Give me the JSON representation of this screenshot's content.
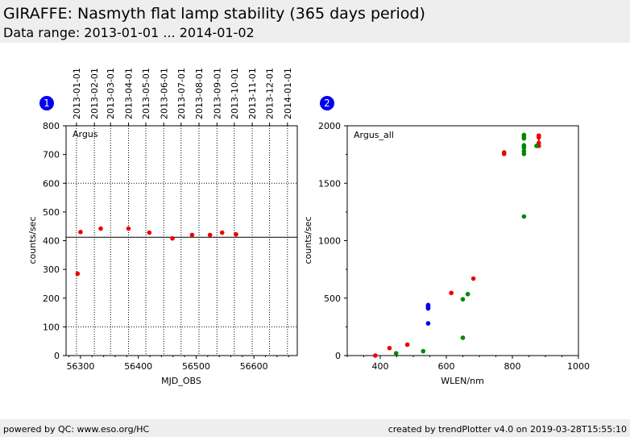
{
  "header": {
    "title": "GIRAFFE: Nasmyth flat lamp stability (365 days period)",
    "subtitle": "Data range: 2013-01-01 ... 2014-01-02"
  },
  "footer": {
    "left": "powered by QC: www.eso.org/HC",
    "right": "created by trendPlotter v4.0 on 2019-03-28T15:55:10"
  },
  "chart_data": [
    {
      "type": "scatter",
      "panel_number": "1",
      "label": "Argus",
      "xlabel": "MJD_OBS",
      "ylabel": "counts/sec",
      "xlim": [
        56275,
        56675
      ],
      "ylim": [
        0,
        800
      ],
      "xticks": [
        56300,
        56400,
        56500,
        56600
      ],
      "yticks": [
        0,
        100,
        200,
        300,
        400,
        500,
        600,
        700,
        800
      ],
      "top_axis_dates": [
        "2013-01-01",
        "2013-02-01",
        "2013-03-01",
        "2013-04-01",
        "2013-05-01",
        "2013-06-01",
        "2013-07-01",
        "2013-08-01",
        "2013-09-01",
        "2013-10-01",
        "2013-11-01",
        "2013-12-01",
        "2014-01-01"
      ],
      "top_axis_mjd": [
        56293,
        56324,
        56352,
        56383,
        56413,
        56444,
        56474,
        56505,
        56536,
        56566,
        56597,
        56627,
        56658
      ],
      "reference_line": 412,
      "threshold_lines": [
        100,
        600
      ],
      "color": "#ee0000",
      "points": [
        {
          "x": 56295,
          "y": 285
        },
        {
          "x": 56300,
          "y": 430
        },
        {
          "x": 56335,
          "y": 442
        },
        {
          "x": 56383,
          "y": 442
        },
        {
          "x": 56419,
          "y": 428
        },
        {
          "x": 56459,
          "y": 408
        },
        {
          "x": 56493,
          "y": 420
        },
        {
          "x": 56524,
          "y": 420
        },
        {
          "x": 56545,
          "y": 428
        },
        {
          "x": 56569,
          "y": 422
        }
      ]
    },
    {
      "type": "scatter",
      "panel_number": "2",
      "label": "Argus_all",
      "xlabel": "WLEN/nm",
      "ylabel": "counts/sec",
      "xlim": [
        300,
        1000
      ],
      "ylim": [
        0,
        2000
      ],
      "xticks": [
        400,
        600,
        800,
        1000
      ],
      "yticks": [
        0,
        500,
        1000,
        1500,
        2000
      ],
      "series": [
        {
          "color": "#ee0000",
          "points": [
            {
              "x": 385,
              "y": 0
            },
            {
              "x": 428,
              "y": 65
            },
            {
              "x": 482,
              "y": 95
            },
            {
              "x": 615,
              "y": 545
            },
            {
              "x": 682,
              "y": 670
            },
            {
              "x": 775,
              "y": 1755
            },
            {
              "x": 775,
              "y": 1768
            },
            {
              "x": 880,
              "y": 1900
            },
            {
              "x": 880,
              "y": 1915
            },
            {
              "x": 880,
              "y": 1850
            },
            {
              "x": 880,
              "y": 1825
            }
          ]
        },
        {
          "color": "#008800",
          "points": [
            {
              "x": 448,
              "y": 20
            },
            {
              "x": 530,
              "y": 38
            },
            {
              "x": 650,
              "y": 155
            },
            {
              "x": 650,
              "y": 490
            },
            {
              "x": 665,
              "y": 535
            },
            {
              "x": 835,
              "y": 1210
            },
            {
              "x": 835,
              "y": 1755
            },
            {
              "x": 835,
              "y": 1780
            },
            {
              "x": 835,
              "y": 1810
            },
            {
              "x": 835,
              "y": 1830
            },
            {
              "x": 835,
              "y": 1890
            },
            {
              "x": 835,
              "y": 1905
            },
            {
              "x": 835,
              "y": 1920
            },
            {
              "x": 873,
              "y": 1825
            }
          ]
        },
        {
          "color": "#0000ee",
          "points": [
            {
              "x": 545,
              "y": 280
            },
            {
              "x": 545,
              "y": 410
            },
            {
              "x": 545,
              "y": 420
            },
            {
              "x": 545,
              "y": 430
            },
            {
              "x": 545,
              "y": 440
            }
          ]
        }
      ]
    }
  ]
}
